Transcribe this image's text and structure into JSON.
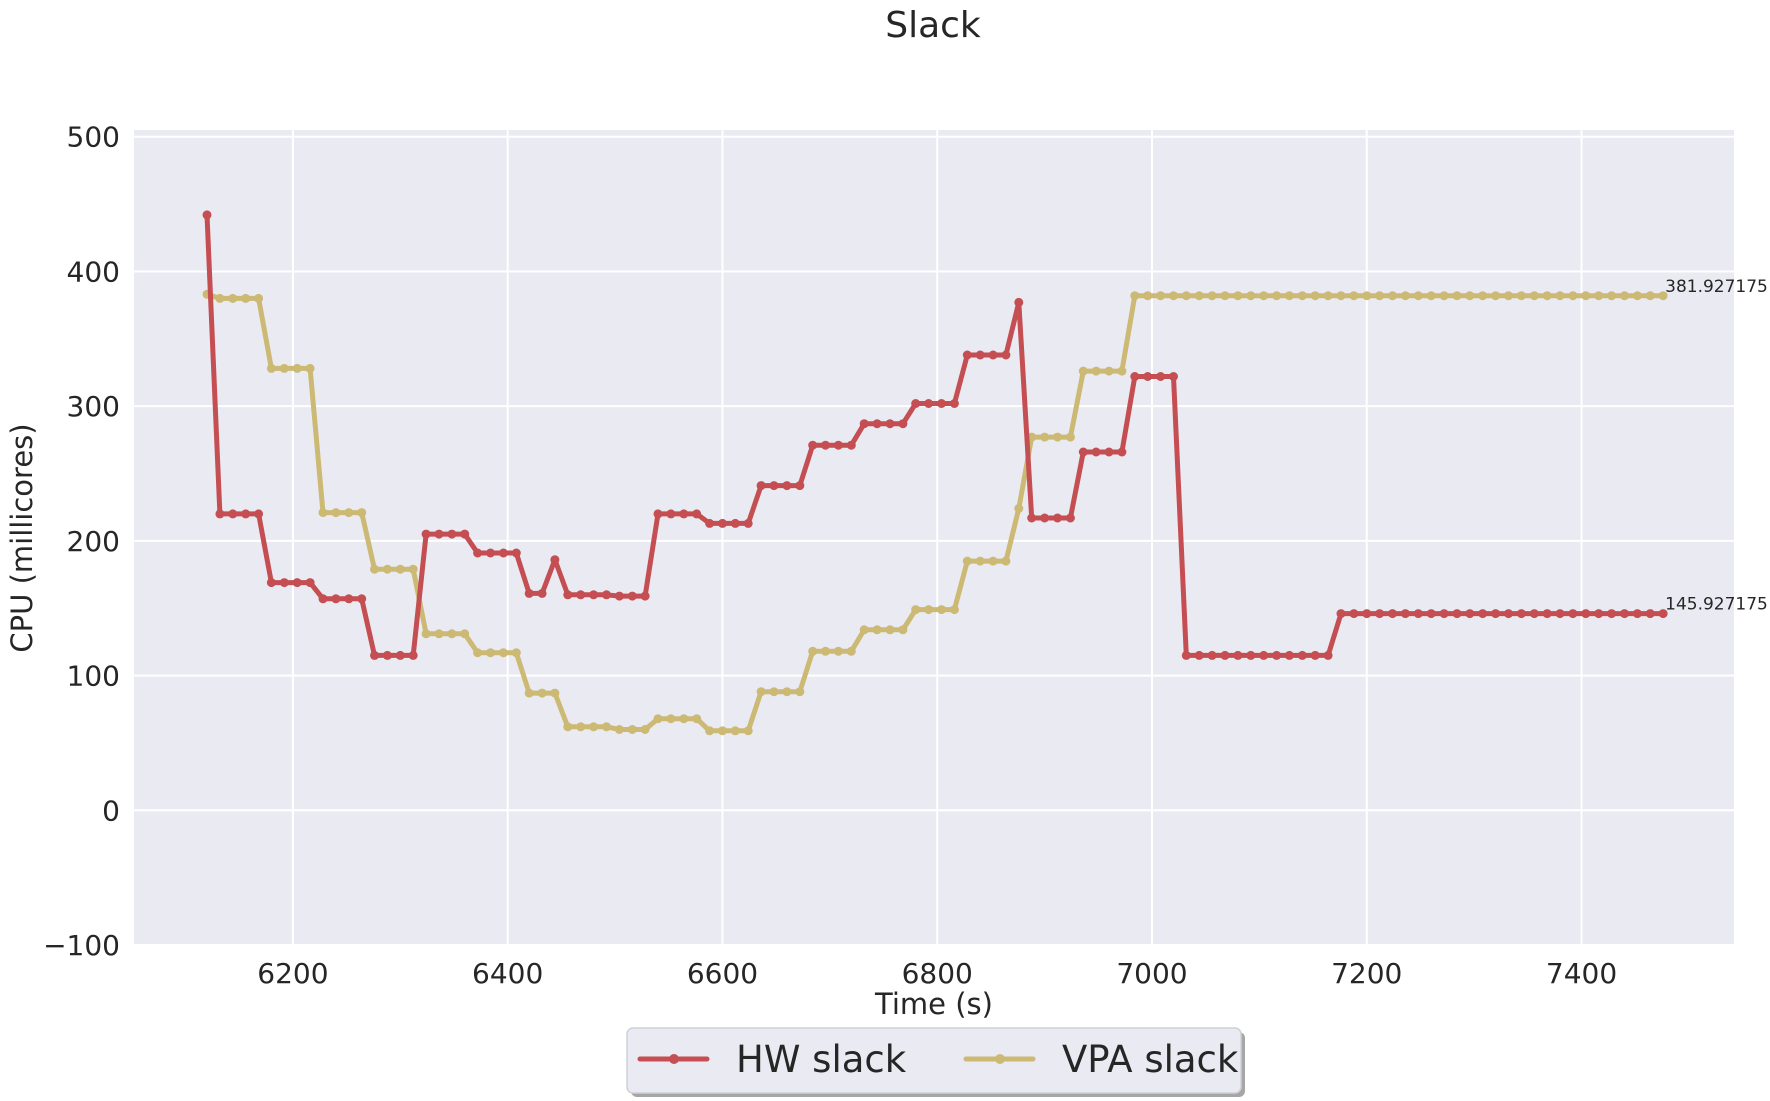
{
  "chart_data": {
    "type": "line",
    "title": "Slack",
    "xlabel": "Time (s)",
    "ylabel": "CPU (millicores)",
    "xlim": [
      6052,
      7542
    ],
    "ylim": [
      -100,
      505
    ],
    "xticks": [
      6200,
      6400,
      6600,
      6800,
      7000,
      7200,
      7400
    ],
    "xtick_labels": [
      "6200",
      "6400",
      "6600",
      "6800",
      "7000",
      "7200",
      "7400"
    ],
    "yticks": [
      -100,
      0,
      100,
      200,
      300,
      400,
      500
    ],
    "ytick_labels": [
      "−100",
      "0",
      "100",
      "200",
      "300",
      "400",
      "500"
    ],
    "grid": true,
    "legend": {
      "placement": "bottom-center",
      "entries": [
        "HW slack",
        "VPA slack"
      ]
    },
    "colors": {
      "HW slack": "#c44e52",
      "VPA slack": "#ccb974",
      "plot_bg": "#eaeaf2",
      "grid": "#ffffff"
    },
    "x": [
      6120,
      6132,
      6144,
      6156,
      6168,
      6180,
      6192,
      6204,
      6216,
      6228,
      6240,
      6252,
      6264,
      6276,
      6288,
      6300,
      6312,
      6324,
      6336,
      6348,
      6360,
      6372,
      6384,
      6396,
      6408,
      6420,
      6432,
      6444,
      6456,
      6468,
      6480,
      6492,
      6504,
      6516,
      6528,
      6540,
      6552,
      6564,
      6576,
      6588,
      6600,
      6612,
      6624,
      6636,
      6648,
      6660,
      6672,
      6684,
      6696,
      6708,
      6720,
      6732,
      6744,
      6756,
      6768,
      6780,
      6792,
      6804,
      6816,
      6828,
      6840,
      6852,
      6864,
      6876,
      6888,
      6900,
      6912,
      6924,
      6936,
      6948,
      6960,
      6972,
      6984,
      6996,
      7008,
      7020,
      7032,
      7044,
      7056,
      7068,
      7080,
      7092,
      7104,
      7116,
      7128,
      7140,
      7152,
      7164,
      7176,
      7188,
      7200,
      7212,
      7224,
      7236,
      7248,
      7260,
      7272,
      7284,
      7296,
      7308,
      7320,
      7332,
      7344,
      7356,
      7368,
      7380,
      7392,
      7404,
      7416,
      7428,
      7440,
      7452,
      7464,
      7476
    ],
    "series": [
      {
        "name": "HW slack",
        "values": [
          442,
          220,
          220,
          220,
          220,
          169,
          169,
          169,
          169,
          157,
          157,
          157,
          157,
          115,
          115,
          115,
          115,
          205,
          205,
          205,
          205,
          191,
          191,
          191,
          191,
          161,
          161,
          186,
          160,
          160,
          160,
          160,
          159,
          159,
          159,
          220,
          220,
          220,
          220,
          213,
          213,
          213,
          213,
          241,
          241,
          241,
          241,
          271,
          271,
          271,
          271,
          287,
          287,
          287,
          287,
          302,
          302,
          302,
          302,
          338,
          338,
          338,
          338,
          377,
          217,
          217,
          217,
          217,
          266,
          266,
          266,
          266,
          322,
          322,
          322,
          322,
          115,
          115,
          115,
          115,
          115,
          115,
          115,
          115,
          115,
          115,
          115,
          115,
          146,
          146,
          146,
          146,
          146,
          146,
          146,
          146,
          146,
          146,
          146,
          146,
          146,
          146,
          146,
          146,
          146,
          146,
          146,
          146,
          146,
          146,
          146,
          146,
          146,
          146
        ],
        "point_count": 114
      },
      {
        "name": "VPA slack",
        "values": [
          383,
          380,
          380,
          380,
          380,
          328,
          328,
          328,
          328,
          221,
          221,
          221,
          221,
          179,
          179,
          179,
          179,
          131,
          131,
          131,
          131,
          117,
          117,
          117,
          117,
          87,
          87,
          87,
          62,
          62,
          62,
          62,
          60,
          60,
          60,
          68,
          68,
          68,
          68,
          59,
          59,
          59,
          59,
          88,
          88,
          88,
          88,
          118,
          118,
          118,
          118,
          134,
          134,
          134,
          134,
          149,
          149,
          149,
          149,
          185,
          185,
          185,
          185,
          224,
          277,
          277,
          277,
          277,
          326,
          326,
          326,
          326,
          382,
          382,
          382,
          382,
          382,
          382,
          382,
          382,
          382,
          382,
          382,
          382,
          382,
          382,
          382,
          382,
          382,
          382,
          382,
          382,
          382,
          382,
          382,
          382,
          382,
          382,
          382,
          382,
          382,
          382,
          382,
          382,
          382,
          382,
          382,
          382,
          382,
          382,
          382,
          382,
          382,
          382
        ],
        "point_count": 114
      }
    ],
    "annotations": [
      {
        "text": "381.927175",
        "x": 7476,
        "y": 381.927175
      },
      {
        "text": "145.927175",
        "x": 7476,
        "y": 145.927175
      }
    ]
  }
}
